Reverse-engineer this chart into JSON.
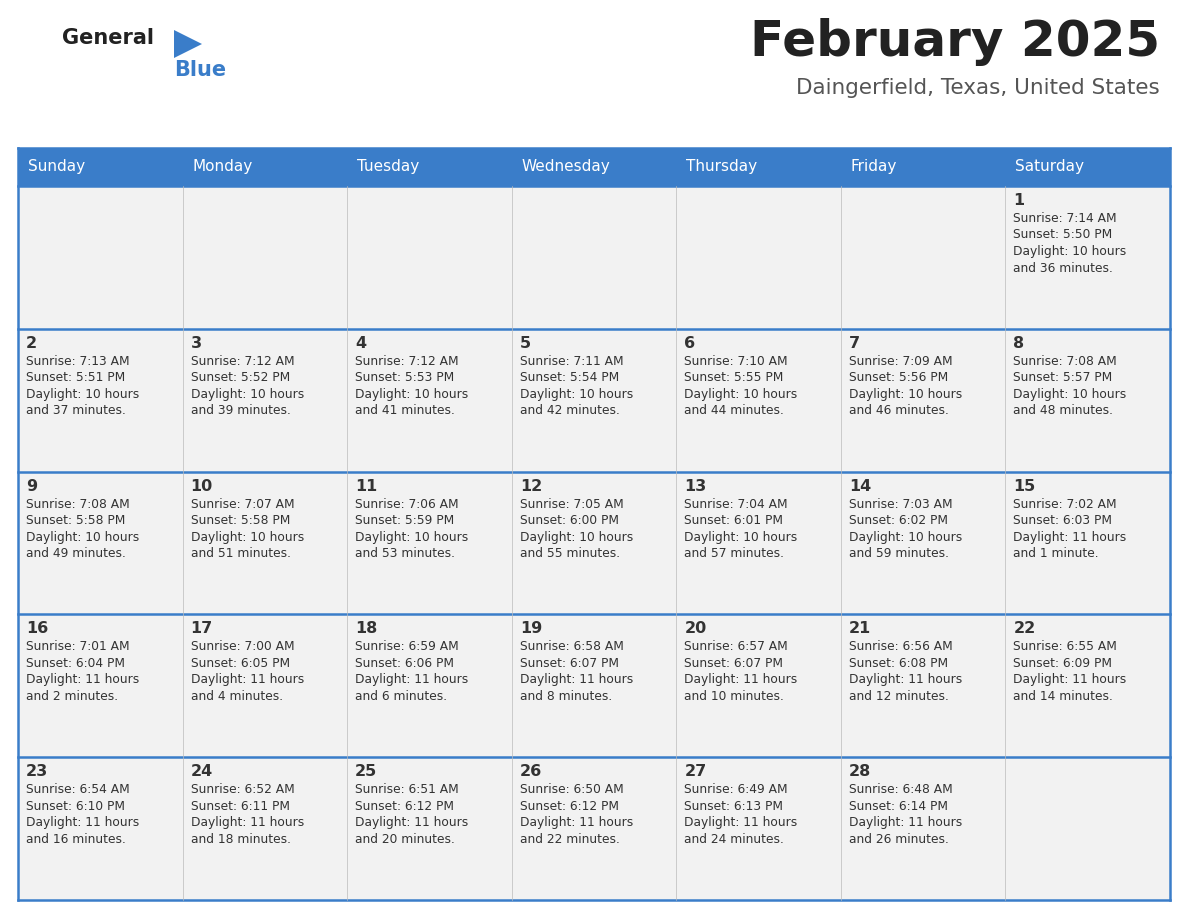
{
  "title": "February 2025",
  "subtitle": "Daingerfield, Texas, United States",
  "days_of_week": [
    "Sunday",
    "Monday",
    "Tuesday",
    "Wednesday",
    "Thursday",
    "Friday",
    "Saturday"
  ],
  "header_bg": "#3A7DC9",
  "header_text": "#FFFFFF",
  "row_bg": "#F2F2F2",
  "cell_text_color": "#333333",
  "border_color": "#3A7DC9",
  "title_color": "#222222",
  "subtitle_color": "#555555",
  "logo_general_color": "#222222",
  "logo_blue_color": "#3A7DC9",
  "calendar_data": [
    [
      null,
      null,
      null,
      null,
      null,
      null,
      {
        "day": "1",
        "sunrise": "7:14 AM",
        "sunset": "5:50 PM",
        "daylight_line1": "10 hours",
        "daylight_line2": "and 36 minutes."
      }
    ],
    [
      {
        "day": "2",
        "sunrise": "7:13 AM",
        "sunset": "5:51 PM",
        "daylight_line1": "10 hours",
        "daylight_line2": "and 37 minutes."
      },
      {
        "day": "3",
        "sunrise": "7:12 AM",
        "sunset": "5:52 PM",
        "daylight_line1": "10 hours",
        "daylight_line2": "and 39 minutes."
      },
      {
        "day": "4",
        "sunrise": "7:12 AM",
        "sunset": "5:53 PM",
        "daylight_line1": "10 hours",
        "daylight_line2": "and 41 minutes."
      },
      {
        "day": "5",
        "sunrise": "7:11 AM",
        "sunset": "5:54 PM",
        "daylight_line1": "10 hours",
        "daylight_line2": "and 42 minutes."
      },
      {
        "day": "6",
        "sunrise": "7:10 AM",
        "sunset": "5:55 PM",
        "daylight_line1": "10 hours",
        "daylight_line2": "and 44 minutes."
      },
      {
        "day": "7",
        "sunrise": "7:09 AM",
        "sunset": "5:56 PM",
        "daylight_line1": "10 hours",
        "daylight_line2": "and 46 minutes."
      },
      {
        "day": "8",
        "sunrise": "7:08 AM",
        "sunset": "5:57 PM",
        "daylight_line1": "10 hours",
        "daylight_line2": "and 48 minutes."
      }
    ],
    [
      {
        "day": "9",
        "sunrise": "7:08 AM",
        "sunset": "5:58 PM",
        "daylight_line1": "10 hours",
        "daylight_line2": "and 49 minutes."
      },
      {
        "day": "10",
        "sunrise": "7:07 AM",
        "sunset": "5:58 PM",
        "daylight_line1": "10 hours",
        "daylight_line2": "and 51 minutes."
      },
      {
        "day": "11",
        "sunrise": "7:06 AM",
        "sunset": "5:59 PM",
        "daylight_line1": "10 hours",
        "daylight_line2": "and 53 minutes."
      },
      {
        "day": "12",
        "sunrise": "7:05 AM",
        "sunset": "6:00 PM",
        "daylight_line1": "10 hours",
        "daylight_line2": "and 55 minutes."
      },
      {
        "day": "13",
        "sunrise": "7:04 AM",
        "sunset": "6:01 PM",
        "daylight_line1": "10 hours",
        "daylight_line2": "and 57 minutes."
      },
      {
        "day": "14",
        "sunrise": "7:03 AM",
        "sunset": "6:02 PM",
        "daylight_line1": "10 hours",
        "daylight_line2": "and 59 minutes."
      },
      {
        "day": "15",
        "sunrise": "7:02 AM",
        "sunset": "6:03 PM",
        "daylight_line1": "11 hours",
        "daylight_line2": "and 1 minute."
      }
    ],
    [
      {
        "day": "16",
        "sunrise": "7:01 AM",
        "sunset": "6:04 PM",
        "daylight_line1": "11 hours",
        "daylight_line2": "and 2 minutes."
      },
      {
        "day": "17",
        "sunrise": "7:00 AM",
        "sunset": "6:05 PM",
        "daylight_line1": "11 hours",
        "daylight_line2": "and 4 minutes."
      },
      {
        "day": "18",
        "sunrise": "6:59 AM",
        "sunset": "6:06 PM",
        "daylight_line1": "11 hours",
        "daylight_line2": "and 6 minutes."
      },
      {
        "day": "19",
        "sunrise": "6:58 AM",
        "sunset": "6:07 PM",
        "daylight_line1": "11 hours",
        "daylight_line2": "and 8 minutes."
      },
      {
        "day": "20",
        "sunrise": "6:57 AM",
        "sunset": "6:07 PM",
        "daylight_line1": "11 hours",
        "daylight_line2": "and 10 minutes."
      },
      {
        "day": "21",
        "sunrise": "6:56 AM",
        "sunset": "6:08 PM",
        "daylight_line1": "11 hours",
        "daylight_line2": "and 12 minutes."
      },
      {
        "day": "22",
        "sunrise": "6:55 AM",
        "sunset": "6:09 PM",
        "daylight_line1": "11 hours",
        "daylight_line2": "and 14 minutes."
      }
    ],
    [
      {
        "day": "23",
        "sunrise": "6:54 AM",
        "sunset": "6:10 PM",
        "daylight_line1": "11 hours",
        "daylight_line2": "and 16 minutes."
      },
      {
        "day": "24",
        "sunrise": "6:52 AM",
        "sunset": "6:11 PM",
        "daylight_line1": "11 hours",
        "daylight_line2": "and 18 minutes."
      },
      {
        "day": "25",
        "sunrise": "6:51 AM",
        "sunset": "6:12 PM",
        "daylight_line1": "11 hours",
        "daylight_line2": "and 20 minutes."
      },
      {
        "day": "26",
        "sunrise": "6:50 AM",
        "sunset": "6:12 PM",
        "daylight_line1": "11 hours",
        "daylight_line2": "and 22 minutes."
      },
      {
        "day": "27",
        "sunrise": "6:49 AM",
        "sunset": "6:13 PM",
        "daylight_line1": "11 hours",
        "daylight_line2": "and 24 minutes."
      },
      {
        "day": "28",
        "sunrise": "6:48 AM",
        "sunset": "6:14 PM",
        "daylight_line1": "11 hours",
        "daylight_line2": "and 26 minutes."
      },
      null
    ]
  ]
}
